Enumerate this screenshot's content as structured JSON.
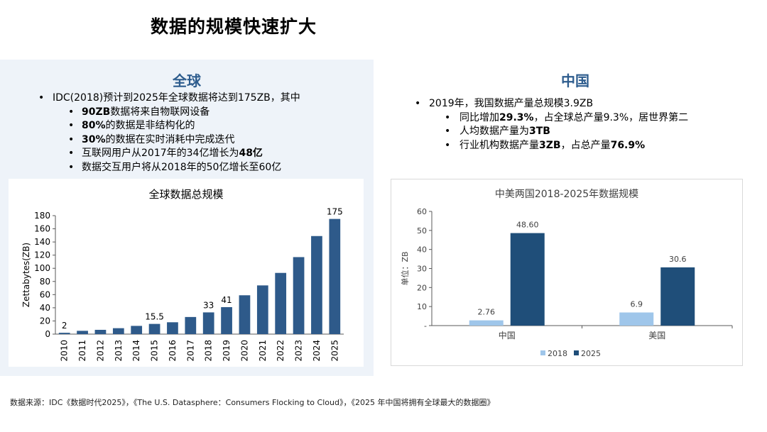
{
  "page": {
    "title": "数据的规模快速扩大"
  },
  "global": {
    "heading": "全球",
    "bullets": [
      {
        "level": 1,
        "parts": [
          {
            "text": "IDC(2018)预计到2025年全球数据将达到175ZB，其中",
            "bold": false
          }
        ]
      },
      {
        "level": 2,
        "parts": [
          {
            "text": "90ZB",
            "bold": true
          },
          {
            "text": "数据将来自物联网设备",
            "bold": false
          }
        ]
      },
      {
        "level": 2,
        "parts": [
          {
            "text": "80%",
            "bold": true
          },
          {
            "text": "的数据是非结构化的",
            "bold": false
          }
        ]
      },
      {
        "level": 2,
        "parts": [
          {
            "text": "30%",
            "bold": true
          },
          {
            "text": "的数据在实时消耗中完成迭代",
            "bold": false
          }
        ]
      },
      {
        "level": 2,
        "parts": [
          {
            "text": "互联网用户从2017年的34亿增长为",
            "bold": false
          },
          {
            "text": "48亿",
            "bold": true
          }
        ]
      },
      {
        "level": 2,
        "parts": [
          {
            "text": "数据交互用户将从2018年的50亿增长至60亿",
            "bold": false
          }
        ]
      }
    ]
  },
  "china": {
    "heading": "中国",
    "bullets": [
      {
        "level": 1,
        "parts": [
          {
            "text": "2019年，我国数据产量总规模3.9ZB",
            "bold": false
          }
        ]
      },
      {
        "level": 2,
        "parts": [
          {
            "text": "同比增加",
            "bold": false
          },
          {
            "text": "29.3%",
            "bold": true
          },
          {
            "text": "，占全球总产量9.3%，居世界第二",
            "bold": false
          }
        ]
      },
      {
        "level": 2,
        "parts": [
          {
            "text": "人均数据产量为",
            "bold": false
          },
          {
            "text": "3TB",
            "bold": true
          }
        ]
      },
      {
        "level": 2,
        "parts": [
          {
            "text": "行业机构数据产量",
            "bold": false
          },
          {
            "text": "3ZB",
            "bold": true
          },
          {
            "text": "，占总产量",
            "bold": false
          },
          {
            "text": "76.9%",
            "bold": true
          }
        ]
      }
    ]
  },
  "chart_data": [
    {
      "type": "bar",
      "title": "全球数据总规模",
      "ylabel": "Zettabytes(ZB)",
      "xlabel": "",
      "categories": [
        "2010",
        "2011",
        "2012",
        "2013",
        "2014",
        "2015",
        "2016",
        "2017",
        "2018",
        "2019",
        "2020",
        "2021",
        "2022",
        "2023",
        "2024",
        "2025"
      ],
      "values": [
        2,
        5,
        6.5,
        9,
        12.5,
        15.5,
        18,
        26,
        33,
        41,
        59,
        74,
        93,
        117,
        149,
        175
      ],
      "data_labels": {
        "0": "2",
        "5": "15.5",
        "8": "33",
        "9": "41",
        "15": "175"
      },
      "ylim": [
        0,
        180
      ],
      "yticks": [
        0,
        20,
        40,
        60,
        80,
        100,
        120,
        140,
        160,
        180
      ],
      "grid": false,
      "color": "#2e5a8a"
    },
    {
      "type": "bar",
      "title": "中美两国2018-2025年数据规模",
      "ylabel": "单位：ZB",
      "xlabel": "",
      "categories": [
        "中国",
        "美国"
      ],
      "series": [
        {
          "name": "2018",
          "values": [
            2.76,
            6.9
          ],
          "labels": [
            "2.76",
            "6.9"
          ],
          "color": "#9fc6ea"
        },
        {
          "name": "2025",
          "values": [
            48.6,
            30.6
          ],
          "labels": [
            "48.60",
            "30.6"
          ],
          "color": "#1f4e79"
        }
      ],
      "ylim": [
        0,
        60
      ],
      "yticks": [
        0,
        10,
        20,
        30,
        40,
        50,
        60
      ],
      "ytick_labels": [
        "-",
        "10",
        "20",
        "30",
        "40",
        "50",
        "60"
      ],
      "grid": false,
      "legend": "bottom"
    }
  ],
  "footer": {
    "source": "数据来源：IDC《数据时代2025》，《The U.S. Datasphere：Consumers Flocking to Cloud》，《2025 年中国将拥有全球最大的数据圈》"
  }
}
